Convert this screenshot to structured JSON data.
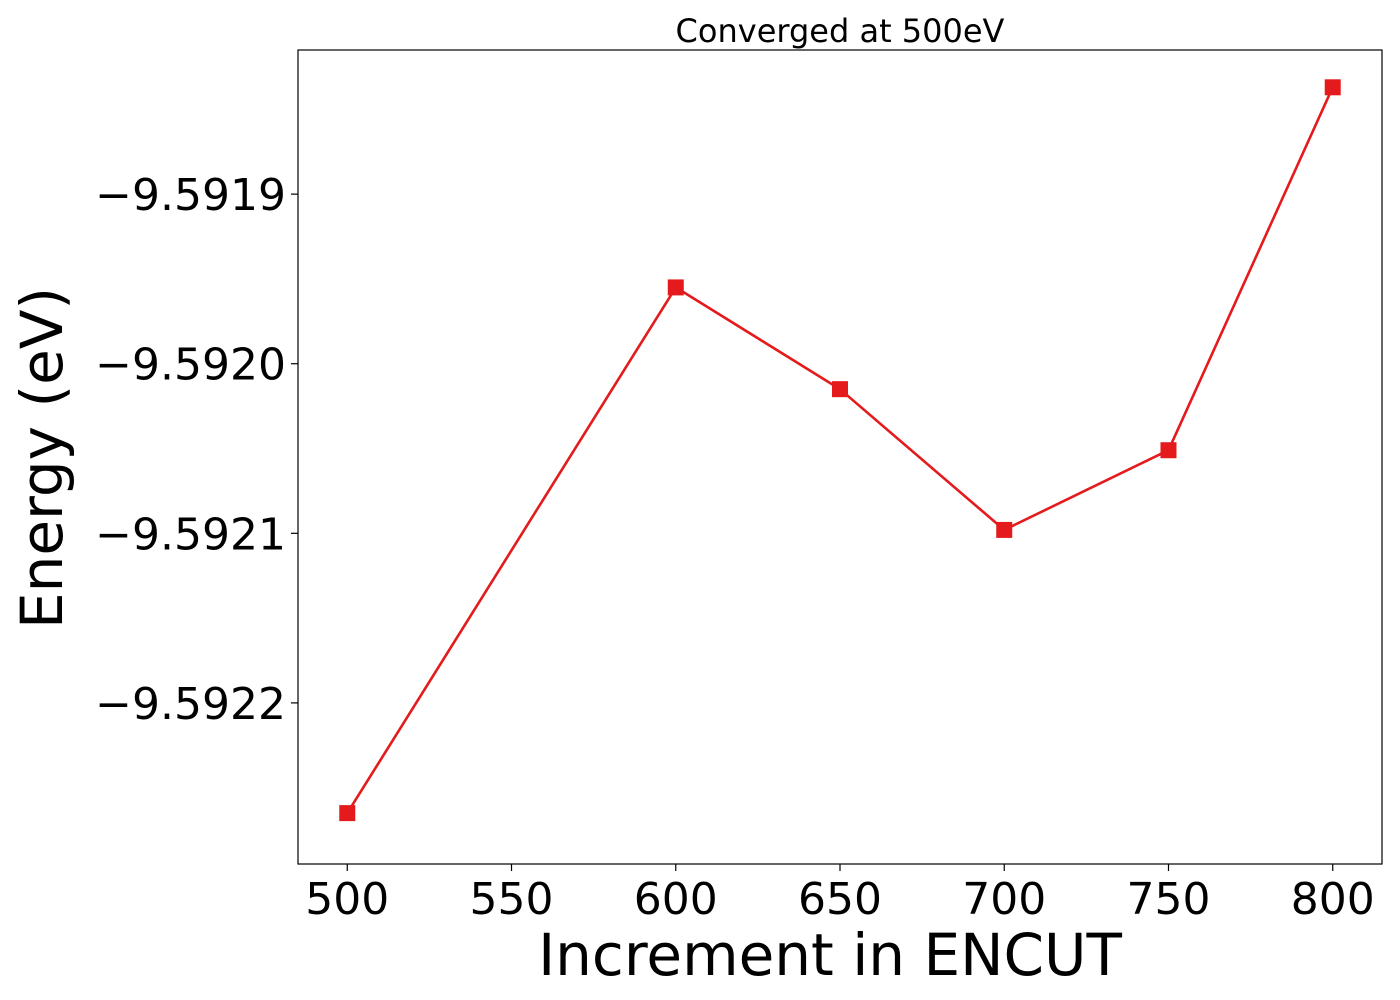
{
  "chart_data": {
    "type": "line",
    "title": "Converged at 500eV",
    "xlabel": "Increment in ENCUT",
    "ylabel": "Energy (eV)",
    "xlim": [
      485,
      815
    ],
    "ylim": [
      -9.592295,
      -9.591815
    ],
    "x_ticks": [
      500,
      550,
      600,
      650,
      700,
      750,
      800
    ],
    "x_tick_labels": [
      "500",
      "550",
      "600",
      "650",
      "700",
      "750",
      "800"
    ],
    "y_ticks": [
      -9.5922,
      -9.5921,
      -9.592,
      -9.5919
    ],
    "y_tick_labels": [
      "−9.5922",
      "−9.5921",
      "−9.5920",
      "−9.5919"
    ],
    "grid": false,
    "legend": false,
    "series": [
      {
        "color": "#e41a1c",
        "marker": "square",
        "x": [
          500,
          600,
          650,
          700,
          750,
          800
        ],
        "y": [
          -9.592265,
          -9.591955,
          -9.592015,
          -9.592098,
          -9.592051,
          -9.591837
        ]
      }
    ]
  }
}
